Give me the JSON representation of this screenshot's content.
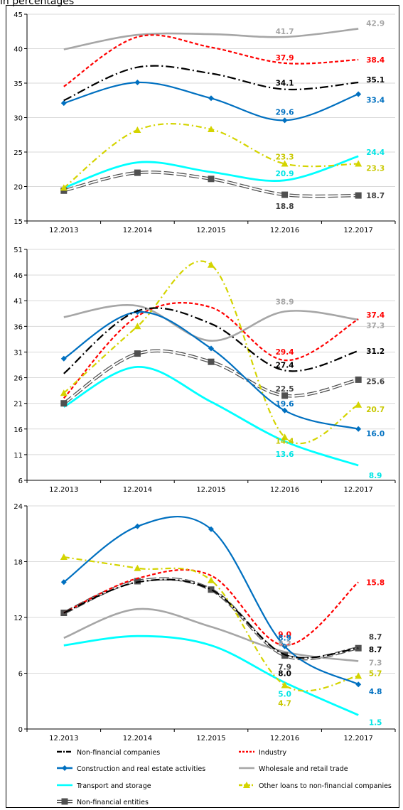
{
  "header": {
    "text": "in percentages"
  },
  "legend": {
    "items": [
      {
        "name": "Non-financial companies",
        "color": "#000000",
        "dash": "12,4,2,4",
        "marker": "none"
      },
      {
        "name": "Industry",
        "color": "#FF0000",
        "dash": "5,3",
        "marker": "none"
      },
      {
        "name": "Construction and real estate activities",
        "color": "#0070C0",
        "dash": "",
        "marker": "diamond"
      },
      {
        "name": "Wholesale and retail trade",
        "color": "#A6A6A6",
        "dash": "",
        "marker": "none"
      },
      {
        "name": "Transport and storage",
        "color": "#00FFFF",
        "dash": "",
        "marker": "none"
      },
      {
        "name": "Other loans to non-financial companies",
        "color": "#D4D400",
        "dash": "8,4,2,4",
        "marker": "triangle"
      },
      {
        "name": "Non-financial entities",
        "color": "#808080",
        "dash": "",
        "marker": "square-double"
      }
    ]
  },
  "chart_data": [
    {
      "type": "line",
      "categories": [
        "12.2013",
        "12.2014",
        "12.2015",
        "12.2016",
        "12.2017"
      ],
      "ylim": [
        15,
        45
      ],
      "yticks": [
        15,
        20,
        25,
        30,
        35,
        40,
        45
      ],
      "grid": true,
      "series": [
        {
          "name": "Non-financial companies",
          "values": [
            32.5,
            37.3,
            36.4,
            34.1,
            35.1
          ],
          "labels": [
            null,
            null,
            null,
            "34.1",
            "35.1"
          ],
          "label_color": "#000000"
        },
        {
          "name": "Industry",
          "values": [
            34.5,
            41.7,
            40.2,
            37.9,
            38.4
          ],
          "labels": [
            null,
            null,
            null,
            "37.9",
            "38.4"
          ],
          "label_color": "#FF0000"
        },
        {
          "name": "Construction and real estate activities",
          "values": [
            32.1,
            35.1,
            32.8,
            29.6,
            33.4
          ],
          "labels": [
            null,
            null,
            null,
            "29.6",
            "33.4"
          ],
          "label_color": "#0070C0"
        },
        {
          "name": "Wholesale and retail trade",
          "values": [
            39.9,
            42.0,
            42.1,
            41.7,
            42.9
          ],
          "labels": [
            null,
            null,
            null,
            "41.7",
            "42.9"
          ],
          "label_color": "#A6A6A6"
        },
        {
          "name": "Transport and storage",
          "values": [
            19.8,
            23.5,
            22.1,
            20.9,
            24.4
          ],
          "labels": [
            null,
            null,
            null,
            "20.9",
            "24.4"
          ],
          "label_color": "#00E5E5"
        },
        {
          "name": "Other loans to non-financial companies",
          "values": [
            19.8,
            28.2,
            28.3,
            23.3,
            23.3
          ],
          "labels": [
            null,
            null,
            null,
            "23.3",
            "23.3"
          ],
          "label_color": "#C8C800"
        },
        {
          "name": "Non-financial entities",
          "values": [
            19.4,
            22.0,
            21.1,
            18.8,
            18.7
          ],
          "labels": [
            null,
            null,
            null,
            "18.8",
            "18.7"
          ],
          "label_color": "#404040"
        }
      ]
    },
    {
      "type": "line",
      "categories": [
        "12.2013",
        "12.2014",
        "12.2015",
        "12.2016",
        "12.2017"
      ],
      "ylim": [
        6,
        51
      ],
      "yticks": [
        6,
        11,
        16,
        21,
        26,
        31,
        36,
        41,
        46,
        51
      ],
      "grid": true,
      "series": [
        {
          "name": "Non-financial companies",
          "values": [
            26.8,
            39.0,
            36.5,
            27.4,
            31.2
          ],
          "labels": [
            null,
            null,
            null,
            "27.4",
            "31.2"
          ],
          "label_color": "#000000"
        },
        {
          "name": "Industry",
          "values": [
            22.0,
            38.0,
            39.7,
            29.4,
            37.4
          ],
          "labels": [
            null,
            null,
            null,
            "29.4",
            "37.4"
          ],
          "label_color": "#FF0000"
        },
        {
          "name": "Construction and real estate activities",
          "values": [
            29.7,
            38.8,
            31.7,
            19.6,
            16.0
          ],
          "labels": [
            null,
            null,
            null,
            "19.6",
            "16.0"
          ],
          "label_color": "#0070C0"
        },
        {
          "name": "Wholesale and retail trade",
          "values": [
            37.8,
            40.0,
            33.2,
            38.9,
            37.3
          ],
          "labels": [
            null,
            null,
            null,
            "38.9",
            "37.3"
          ],
          "label_color": "#A6A6A6"
        },
        {
          "name": "Transport and storage",
          "values": [
            20.3,
            28.1,
            21.3,
            13.6,
            8.9
          ],
          "labels": [
            null,
            null,
            null,
            "13.6",
            "8.9"
          ],
          "label_color": "#00E5E5"
        },
        {
          "name": "Other loans to non-financial companies",
          "values": [
            23.0,
            36.0,
            48.0,
            14.4,
            20.7
          ],
          "labels": [
            null,
            null,
            null,
            "14.4",
            "20.7"
          ],
          "label_color": "#C8C800"
        },
        {
          "name": "Non-financial entities",
          "values": [
            21.0,
            30.7,
            29.1,
            22.5,
            25.6
          ],
          "labels": [
            null,
            null,
            null,
            "22.5",
            "25.6"
          ],
          "label_color": "#404040"
        }
      ]
    },
    {
      "type": "line",
      "categories": [
        "12.2013",
        "12.2014",
        "12.2015",
        "12.2016",
        "12.2017"
      ],
      "ylim": [
        0,
        24
      ],
      "yticks": [
        0,
        6,
        12,
        18,
        24
      ],
      "grid": true,
      "series": [
        {
          "name": "Non-financial companies",
          "values": [
            12.5,
            15.8,
            15.0,
            8.0,
            8.7
          ],
          "labels": [
            null,
            null,
            null,
            "8.0",
            "8.7"
          ],
          "label_color": "#000000"
        },
        {
          "name": "Industry",
          "values": [
            12.5,
            16.2,
            16.5,
            9.0,
            15.8
          ],
          "labels": [
            null,
            null,
            null,
            "9.0",
            "15.8"
          ],
          "label_color": "#FF0000"
        },
        {
          "name": "Construction and real estate activities",
          "values": [
            15.8,
            21.8,
            21.5,
            8.9,
            4.8
          ],
          "labels": [
            null,
            null,
            null,
            "8.9",
            "4.8"
          ],
          "label_color": "#0070C0"
        },
        {
          "name": "Wholesale and retail trade",
          "values": [
            9.8,
            12.9,
            11.0,
            8.3,
            7.3
          ],
          "labels": [
            null,
            null,
            null,
            "8.3",
            "7.3"
          ],
          "label_color": "#A6A6A6"
        },
        {
          "name": "Transport and storage",
          "values": [
            9.0,
            10.0,
            9.0,
            5.0,
            1.5
          ],
          "labels": [
            null,
            null,
            null,
            "5.0",
            "1.5"
          ],
          "label_color": "#00E5E5"
        },
        {
          "name": "Other loans to non-financial companies",
          "values": [
            18.5,
            17.3,
            16.0,
            4.7,
            5.7
          ],
          "labels": [
            null,
            null,
            null,
            "4.7",
            "5.7"
          ],
          "label_color": "#C8C800"
        },
        {
          "name": "Non-financial entities",
          "values": [
            12.5,
            15.9,
            15.0,
            7.9,
            8.7
          ],
          "labels": [
            null,
            null,
            null,
            "7.9",
            "8.7"
          ],
          "label_color": "#404040"
        }
      ]
    }
  ]
}
